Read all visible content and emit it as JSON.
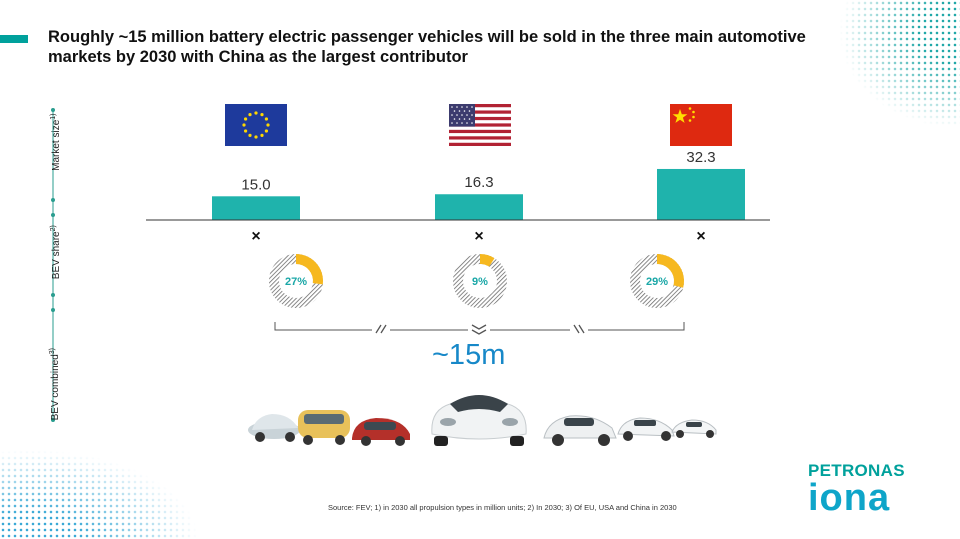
{
  "title": "Roughly ~15 million battery electric passenger vehicles will be sold in the three main automotive markets by 2030 with China as the largest contributor",
  "side_labels": {
    "market_size": "Market size",
    "market_size_note": "1)",
    "bev_share": "BEV share",
    "bev_share_note": "2)",
    "bev_combined": "BEV combined",
    "bev_combined_note": "3)"
  },
  "chart_data": {
    "type": "bar",
    "categories": [
      "EU",
      "USA",
      "China"
    ],
    "values": [
      15.0,
      16.3,
      32.3
    ],
    "value_labels": [
      "15.0",
      "16.3",
      "32.3"
    ],
    "unit": "million units",
    "bev_share": [
      27,
      9,
      29
    ],
    "bev_share_labels": [
      "27%",
      "9%",
      "29%"
    ],
    "multiplier_symbol": "×",
    "total_label": "~15m"
  },
  "colors": {
    "bar": "#1fb3ac",
    "share": "#f6b81f",
    "share_text": "#1aa7a7",
    "total": "#1788c8",
    "brand": "#00a19c"
  },
  "footnote": "Source: FEV; 1) in 2030 all propulsion types in million units; 2) In 2030; 3) Of EU, USA and China in 2030",
  "brand": {
    "name": "PETRONAS",
    "sub": "iona"
  },
  "flags": [
    "eu-flag-icon",
    "usa-flag-icon",
    "china-flag-icon"
  ]
}
